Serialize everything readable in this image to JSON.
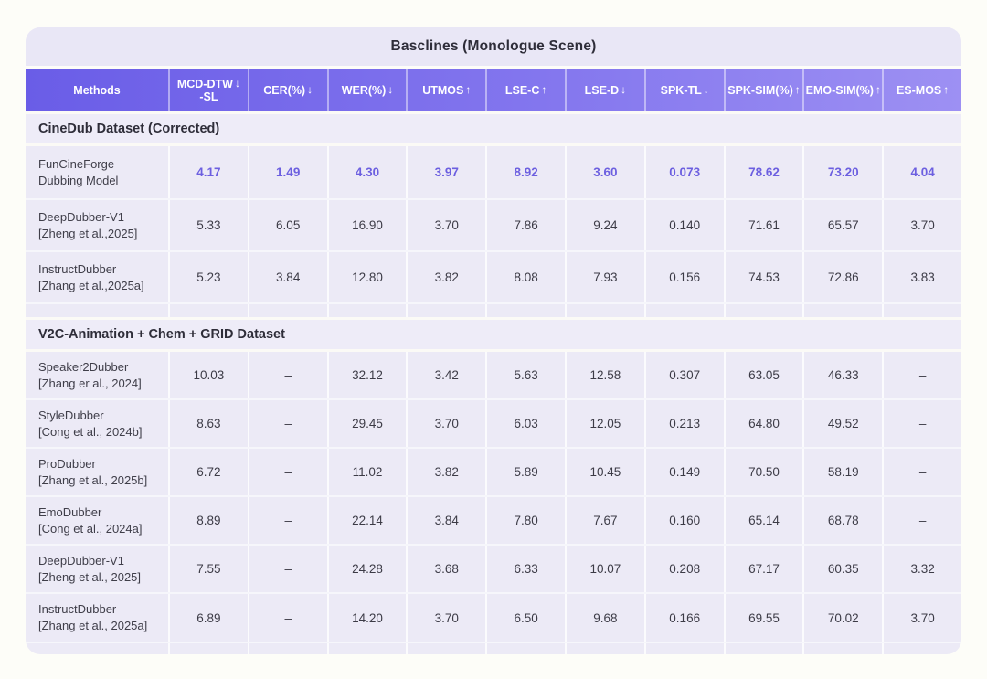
{
  "card": {
    "title": "Basclines (Monologue Scene)"
  },
  "colors": {
    "header_gradient_start": "#6a5de7",
    "header_gradient_end": "#9d90f3",
    "card_background": "#eceaf6",
    "title_band_background": "#e9e7f6",
    "section_band_background": "#eeecf8",
    "highlight_value_text": "#6c5fe0",
    "header_text": "#ffffff",
    "body_text": "#3c3b46",
    "heading_text": "#2e2d39"
  },
  "table": {
    "columns": [
      {
        "id": "methods",
        "lines": [
          "Methods"
        ],
        "arrow": ""
      },
      {
        "id": "mcd-dtw-sl",
        "lines": [
          "MCD-DTW",
          "-SL"
        ],
        "arrow": "↓"
      },
      {
        "id": "cer",
        "lines": [
          "CER(%)"
        ],
        "arrow": "↓"
      },
      {
        "id": "wer",
        "lines": [
          "WER(%)"
        ],
        "arrow": "↓"
      },
      {
        "id": "utmos",
        "lines": [
          "UTMOS"
        ],
        "arrow": "↑"
      },
      {
        "id": "lse-c",
        "lines": [
          "LSE-C"
        ],
        "arrow": "↑"
      },
      {
        "id": "lse-d",
        "lines": [
          "LSE-D"
        ],
        "arrow": "↓"
      },
      {
        "id": "spk-tl",
        "lines": [
          "SPK-TL"
        ],
        "arrow": "↓"
      },
      {
        "id": "spk-sim",
        "lines": [
          "SPK-SIM(%)"
        ],
        "arrow": "↑"
      },
      {
        "id": "emo-sim",
        "lines": [
          "EMO-SIM(%)"
        ],
        "arrow": "↑"
      },
      {
        "id": "es-mos",
        "lines": [
          "ES-MOS"
        ],
        "arrow": "↑"
      }
    ],
    "sections": [
      {
        "title": "CineDub Dataset (Corrected)",
        "rows": [
          {
            "method": [
              "FunCineForge",
              "Dubbing Model"
            ],
            "highlight": true,
            "values": [
              "4.17",
              "1.49",
              "4.30",
              "3.97",
              "8.92",
              "3.60",
              "0.073",
              "78.62",
              "73.20",
              "4.04"
            ]
          },
          {
            "method": [
              "DeepDubber-V1",
              "[Zheng et al.,2025]"
            ],
            "highlight": false,
            "values": [
              "5.33",
              "6.05",
              "16.90",
              "3.70",
              "7.86",
              "9.24",
              "0.140",
              "71.61",
              "65.57",
              "3.70"
            ]
          },
          {
            "method": [
              "InstructDubber",
              "[Zhang et al.,2025a]"
            ],
            "highlight": false,
            "values": [
              "5.23",
              "3.84",
              "12.80",
              "3.82",
              "8.08",
              "7.93",
              "0.156",
              "74.53",
              "72.86",
              "3.83"
            ]
          }
        ]
      },
      {
        "title": "V2C-Animation + Chem + GRID Dataset",
        "rows": [
          {
            "method": [
              "Speaker2Dubber",
              "[Zhang er al., 2024]"
            ],
            "highlight": false,
            "values": [
              "10.03",
              "–",
              "32.12",
              "3.42",
              "5.63",
              "12.58",
              "0.307",
              "63.05",
              "46.33",
              "–"
            ]
          },
          {
            "method": [
              "StyleDubber",
              "[Cong et al., 2024b]"
            ],
            "highlight": false,
            "values": [
              "8.63",
              "–",
              "29.45",
              "3.70",
              "6.03",
              "12.05",
              "0.213",
              "64.80",
              "49.52",
              "–"
            ]
          },
          {
            "method": [
              "ProDubber",
              "[Zhang et al., 2025b]"
            ],
            "highlight": false,
            "values": [
              "6.72",
              "–",
              "11.02",
              "3.82",
              "5.89",
              "10.45",
              "0.149",
              "70.50",
              "58.19",
              "–"
            ]
          },
          {
            "method": [
              "EmoDubber",
              "[Cong et al., 2024a]"
            ],
            "highlight": false,
            "values": [
              "8.89",
              "–",
              "22.14",
              "3.84",
              "7.80",
              "7.67",
              "0.160",
              "65.14",
              "68.78",
              "–"
            ]
          },
          {
            "method": [
              "DeepDubber-V1",
              "[Zheng et al., 2025]"
            ],
            "highlight": false,
            "values": [
              "7.55",
              "–",
              "24.28",
              "3.68",
              "6.33",
              "10.07",
              "0.208",
              "67.17",
              "60.35",
              "3.32"
            ]
          },
          {
            "method": [
              "InstructDubber",
              "[Zhang et al., 2025a]"
            ],
            "highlight": false,
            "values": [
              "6.89",
              "–",
              "14.20",
              "3.70",
              "6.50",
              "9.68",
              "0.166",
              "69.55",
              "70.02",
              "3.70"
            ]
          }
        ]
      }
    ]
  }
}
